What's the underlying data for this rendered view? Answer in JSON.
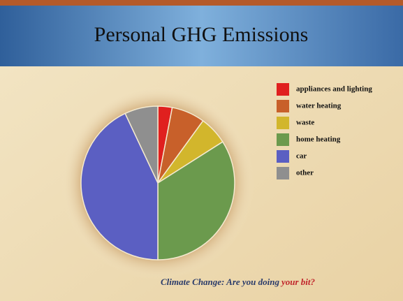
{
  "chart_data": {
    "type": "pie",
    "title": "Personal GHG Emissions",
    "categories": [
      "appliances and lighting",
      "water heating",
      "waste",
      "home heating",
      "car",
      "other"
    ],
    "values": [
      3,
      7,
      6,
      34,
      43,
      7
    ],
    "colors": [
      "#e0201f",
      "#c8602a",
      "#d2b62c",
      "#6b9a4d",
      "#5b5fc2",
      "#8f8f8f"
    ],
    "legend": "top-right"
  },
  "footer": {
    "text": "Climate Change: Are you doing",
    "highlight": "your bit?"
  }
}
